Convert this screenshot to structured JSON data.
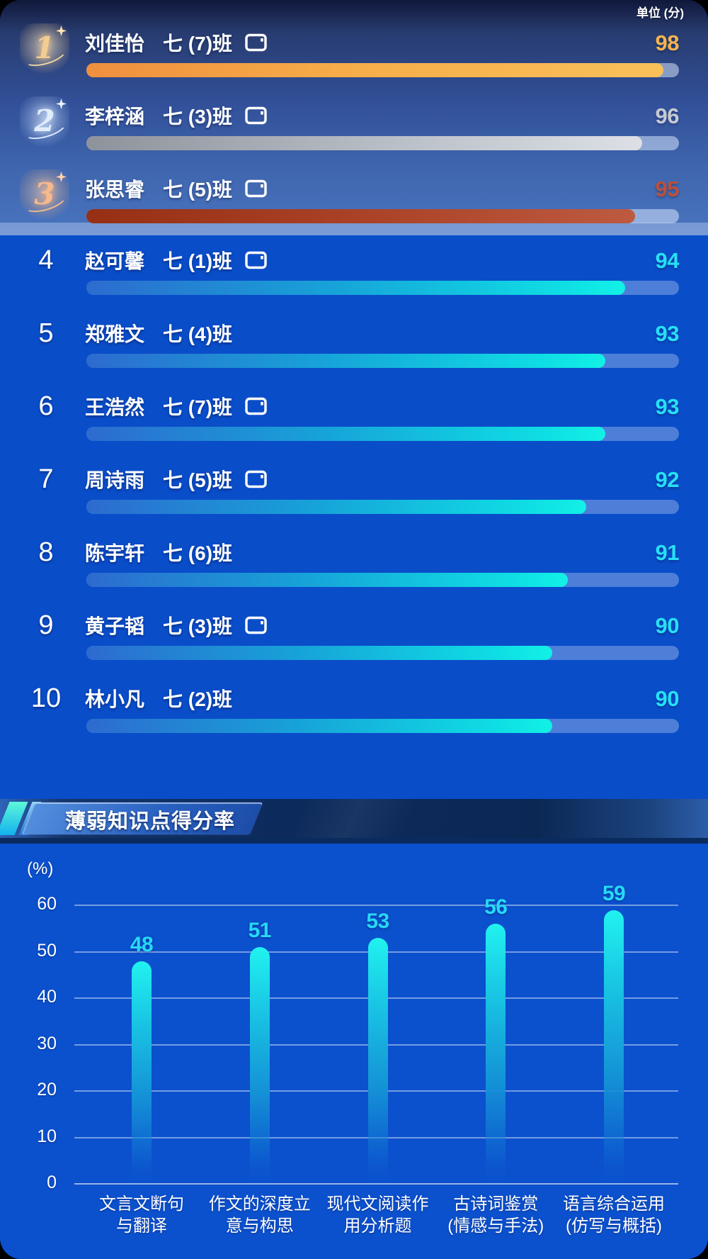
{
  "unit_label": "单位 (分)",
  "leaderboard": {
    "items": [
      {
        "rank": 1,
        "name": "刘佳怡",
        "class": "七 (7)班",
        "score": 98,
        "has_tablet_icon": true,
        "tier": "gold",
        "bar_pct": 97.4
      },
      {
        "rank": 2,
        "name": "李梓涵",
        "class": "七 (3)班",
        "score": 96,
        "has_tablet_icon": true,
        "tier": "silver",
        "bar_pct": 93.8
      },
      {
        "rank": 3,
        "name": "张思睿",
        "class": "七 (5)班",
        "score": 95,
        "has_tablet_icon": true,
        "tier": "bronze",
        "bar_pct": 92.6
      },
      {
        "rank": 4,
        "name": "赵可馨",
        "class": "七 (1)班",
        "score": 94,
        "has_tablet_icon": true,
        "tier": "normal",
        "bar_pct": 90.9
      },
      {
        "rank": 5,
        "name": "郑雅文",
        "class": "七 (4)班",
        "score": 93,
        "has_tablet_icon": false,
        "tier": "normal",
        "bar_pct": 87.6
      },
      {
        "rank": 6,
        "name": "王浩然",
        "class": "七 (7)班",
        "score": 93,
        "has_tablet_icon": true,
        "tier": "normal",
        "bar_pct": 87.6
      },
      {
        "rank": 7,
        "name": "周诗雨",
        "class": "七 (5)班",
        "score": 92,
        "has_tablet_icon": true,
        "tier": "normal",
        "bar_pct": 84.3
      },
      {
        "rank": 8,
        "name": "陈宇轩",
        "class": "七 (6)班",
        "score": 91,
        "has_tablet_icon": false,
        "tier": "normal",
        "bar_pct": 81.2
      },
      {
        "rank": 9,
        "name": "黄子韬",
        "class": "七 (3)班",
        "score": 90,
        "has_tablet_icon": true,
        "tier": "normal",
        "bar_pct": 78.6
      },
      {
        "rank": 10,
        "name": "林小凡",
        "class": "七 (2)班",
        "score": 90,
        "has_tablet_icon": false,
        "tier": "normal",
        "bar_pct": 78.6
      }
    ]
  },
  "section": {
    "title": "薄弱知识点得分率"
  },
  "chart_data": {
    "type": "bar",
    "title": "薄弱知识点得分率",
    "ylabel": "(%)",
    "categories": [
      "文言文断句与翻译",
      "作文的深度立意与构思",
      "现代文阅读作用分析题",
      "古诗词鉴赏(情感与手法)",
      "语言综合运用(仿写与概括)"
    ],
    "category_lines": [
      [
        "文言文断句",
        "与翻译"
      ],
      [
        "作文的深度立",
        "意与构思"
      ],
      [
        "现代文阅读作",
        "用分析题"
      ],
      [
        "古诗词鉴赏",
        "(情感与手法)"
      ],
      [
        "语言综合运用",
        "(仿写与概括)"
      ]
    ],
    "values": [
      48,
      51,
      53,
      56,
      59
    ],
    "yticks": [
      0,
      10,
      20,
      30,
      40,
      50,
      60
    ],
    "ylim": [
      0,
      65
    ],
    "grid": true,
    "legend_position": "none"
  },
  "colors": {
    "gold_score": "#f3b44e",
    "silver_score": "#c6cad1",
    "bronze_score": "#b9503a",
    "cyan_score": "#27e0f7",
    "bar_value_label": "#27d9f8"
  }
}
